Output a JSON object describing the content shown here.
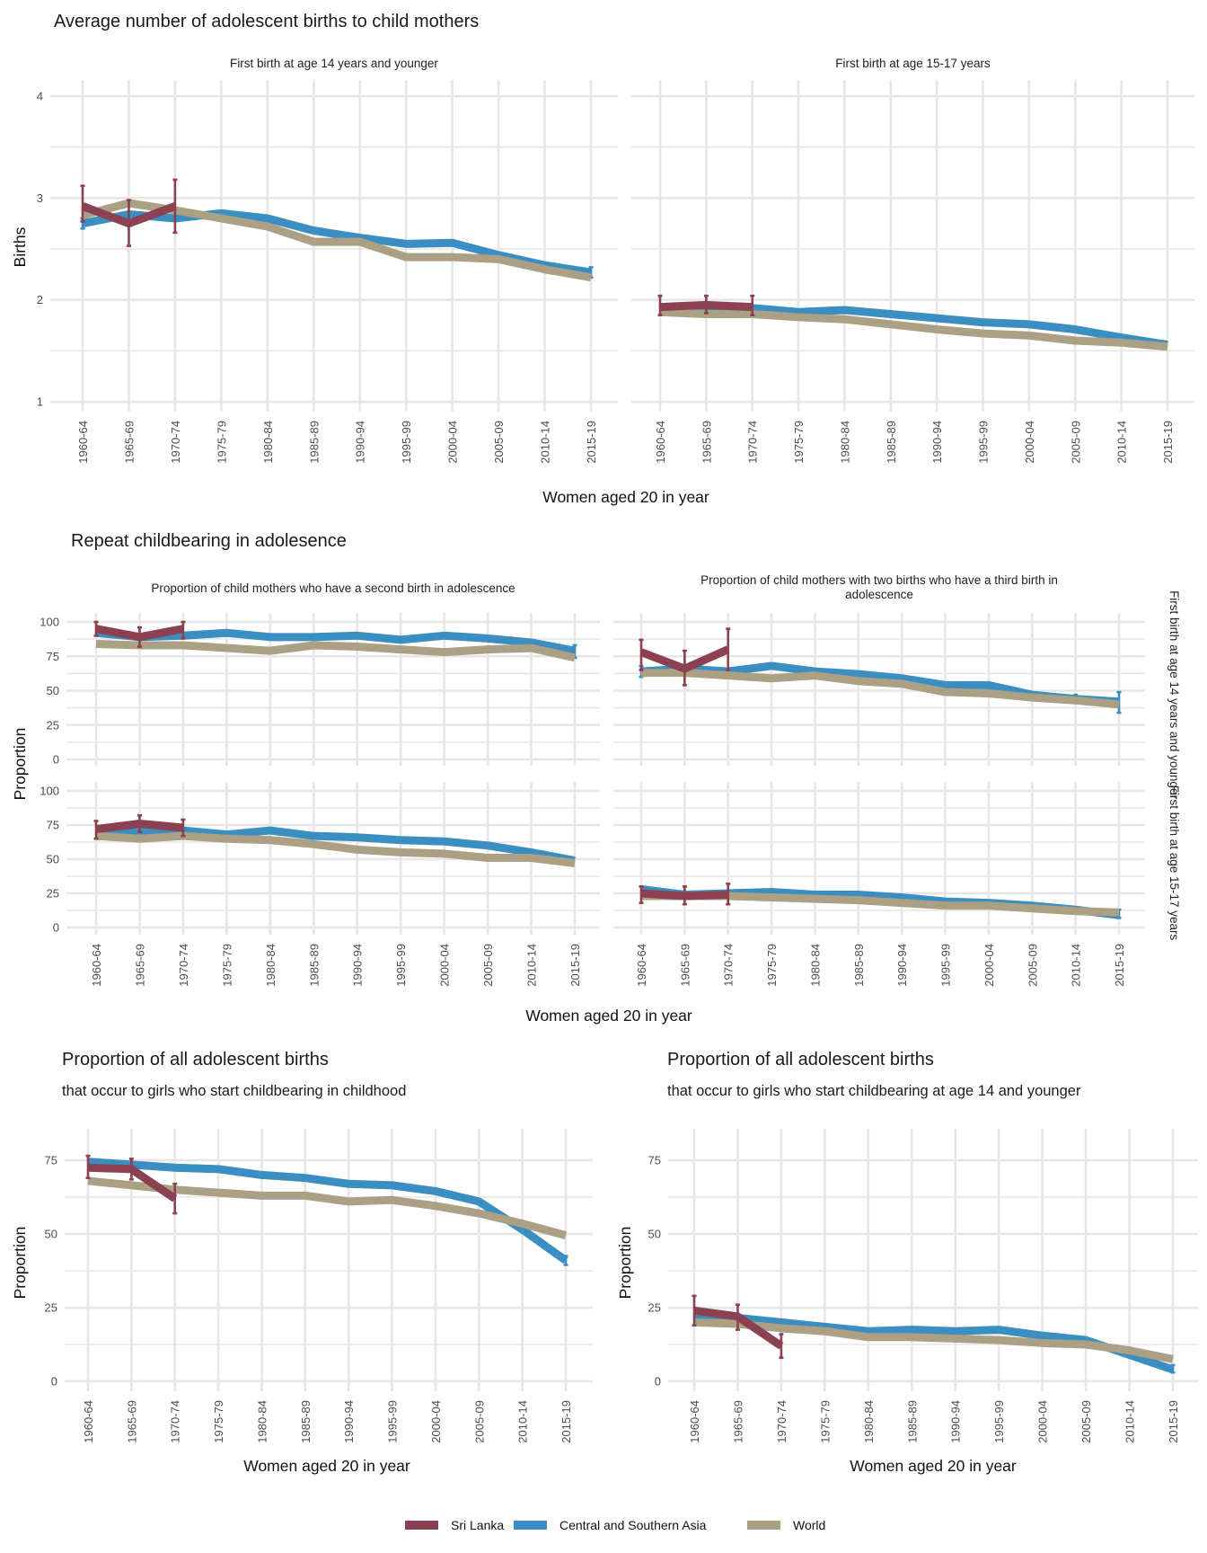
{
  "colors": {
    "sri_lanka": "#8b4151",
    "csa": "#3a8ec1",
    "world": "#ab9f84",
    "grid": "#e6e6e6"
  },
  "legend": [
    {
      "name": "Sri Lanka",
      "color": "#8b4151"
    },
    {
      "name": "Central and Southern Asia",
      "color": "#3a8ec1"
    },
    {
      "name": "World",
      "color": "#ab9f84"
    }
  ],
  "sections": {
    "s1": {
      "title": "Average number of adolescent births to child mothers",
      "xlabel": "Women aged 20 in year",
      "ylabel": "Births"
    },
    "s2": {
      "title": "Repeat childbearing in adolesence",
      "xlabel": "Women aged 20 in year",
      "ylabel": "Proportion",
      "row_strips": [
        "First birth at age 14 years and younger",
        "First birth at age 15-17 years"
      ]
    },
    "s3": {
      "title": "Proportion of all adolescent births",
      "subtitle": "that occur to girls who start childbearing in childhood",
      "xlabel": "Women aged 20 in year",
      "ylabel": "Proportion"
    },
    "s4": {
      "title": "Proportion of all adolescent births",
      "subtitle": "that occur to girls who start childbearing at age 14 and younger",
      "xlabel": "Women aged 20 in year",
      "ylabel": "Proportion"
    }
  },
  "chart_data": [
    {
      "id": "p1a",
      "type": "line",
      "panel_title": "First birth at age 14 years and younger",
      "categories": [
        "1960-64",
        "1965-69",
        "1970-74",
        "1975-79",
        "1980-84",
        "1985-89",
        "1990-94",
        "1995-99",
        "2000-04",
        "2005-09",
        "2010-14",
        "2015-19"
      ],
      "ylim": [
        1,
        4
      ],
      "yticks": [
        1,
        2,
        3,
        4
      ],
      "grid": true,
      "series": [
        {
          "name": "Central and Southern Asia",
          "values": [
            2.75,
            2.84,
            2.8,
            2.85,
            2.8,
            2.68,
            2.61,
            2.55,
            2.56,
            2.44,
            2.34,
            2.27
          ],
          "error": [
            [
              0,
              2.7,
              2.8
            ],
            [
              11,
              2.22,
              2.32
            ]
          ]
        },
        {
          "name": "World",
          "values": [
            2.83,
            2.95,
            2.88,
            2.8,
            2.72,
            2.57,
            2.57,
            2.42,
            2.42,
            2.4,
            2.3,
            2.22
          ]
        },
        {
          "name": "Sri Lanka",
          "values": [
            2.92,
            2.75,
            2.92,
            null,
            null,
            null,
            null,
            null,
            null,
            null,
            null,
            null
          ],
          "error": [
            [
              0,
              2.77,
              3.12
            ],
            [
              1,
              2.53,
              2.98
            ],
            [
              2,
              2.66,
              3.18
            ]
          ]
        }
      ]
    },
    {
      "id": "p1b",
      "type": "line",
      "panel_title": "First birth at age 15-17 years",
      "categories": [
        "1960-64",
        "1965-69",
        "1970-74",
        "1975-79",
        "1980-84",
        "1985-89",
        "1990-94",
        "1995-99",
        "2000-04",
        "2005-09",
        "2010-14",
        "2015-19"
      ],
      "ylim": [
        1,
        4
      ],
      "yticks": [
        1,
        2,
        3,
        4
      ],
      "grid": true,
      "series": [
        {
          "name": "Central and Southern Asia",
          "values": [
            1.92,
            1.92,
            1.92,
            1.88,
            1.9,
            1.86,
            1.82,
            1.78,
            1.76,
            1.71,
            1.63,
            1.56
          ]
        },
        {
          "name": "World",
          "values": [
            1.88,
            1.86,
            1.86,
            1.83,
            1.81,
            1.76,
            1.71,
            1.67,
            1.65,
            1.6,
            1.58,
            1.54
          ]
        },
        {
          "name": "Sri Lanka",
          "values": [
            1.93,
            1.95,
            1.93,
            null,
            null,
            null,
            null,
            null,
            null,
            null,
            null,
            null
          ],
          "error": [
            [
              0,
              1.85,
              2.04
            ],
            [
              1,
              1.87,
              2.04
            ],
            [
              2,
              1.85,
              2.04
            ]
          ]
        }
      ]
    },
    {
      "id": "p2a",
      "type": "line",
      "panel_title": "Proportion of child mothers who have a second birth in adolescence",
      "row_strip": "First birth at age 14 years and younger",
      "categories": [
        "1960-64",
        "1965-69",
        "1970-74",
        "1975-79",
        "1980-84",
        "1985-89",
        "1990-94",
        "1995-99",
        "2000-04",
        "2005-09",
        "2010-14",
        "2015-19"
      ],
      "ylim": [
        0,
        100
      ],
      "yticks": [
        0,
        25,
        50,
        75,
        100
      ],
      "grid": true,
      "series": [
        {
          "name": "Central and Southern Asia",
          "values": [
            92,
            89,
            90,
            92,
            89,
            89,
            90,
            87,
            90,
            88,
            85,
            79
          ],
          "error": [
            [
              11,
              74,
              83
            ]
          ]
        },
        {
          "name": "World",
          "values": [
            84,
            83,
            83,
            81,
            79,
            83,
            82,
            80,
            78,
            80,
            81,
            74
          ]
        },
        {
          "name": "Sri Lanka",
          "values": [
            95,
            89,
            95,
            null,
            null,
            null,
            null,
            null,
            null,
            null,
            null,
            null
          ],
          "error": [
            [
              0,
              90,
              100
            ],
            [
              1,
              82,
              96
            ],
            [
              2,
              88,
              100
            ]
          ]
        }
      ]
    },
    {
      "id": "p2b",
      "type": "line",
      "panel_title": "Proportion of child mothers with two births who have a third birth in adolescence",
      "row_strip": "First birth at age 14 years and younger",
      "categories": [
        "1960-64",
        "1965-69",
        "1970-74",
        "1975-79",
        "1980-84",
        "1985-89",
        "1990-94",
        "1995-99",
        "2000-04",
        "2005-09",
        "2010-14",
        "2015-19"
      ],
      "ylim": [
        0,
        100
      ],
      "yticks": [
        0,
        25,
        50,
        75,
        100
      ],
      "grid": true,
      "series": [
        {
          "name": "Central and Southern Asia",
          "values": [
            64,
            66,
            64,
            68,
            64,
            62,
            59,
            54,
            54,
            47,
            44,
            42
          ],
          "error": [
            [
              0,
              60,
              68
            ],
            [
              10,
              41,
              47
            ],
            [
              11,
              34,
              49
            ]
          ]
        },
        {
          "name": "World",
          "values": [
            63,
            63,
            61,
            59,
            61,
            57,
            55,
            49,
            48,
            45,
            43,
            40
          ]
        },
        {
          "name": "Sri Lanka",
          "values": [
            78,
            66,
            80,
            null,
            null,
            null,
            null,
            null,
            null,
            null,
            null,
            null
          ],
          "error": [
            [
              0,
              65,
              87
            ],
            [
              1,
              54,
              79
            ],
            [
              2,
              65,
              95
            ]
          ]
        }
      ]
    },
    {
      "id": "p2c",
      "type": "line",
      "panel_title": "",
      "row_strip": "First birth at age 15-17 years",
      "categories": [
        "1960-64",
        "1965-69",
        "1970-74",
        "1975-79",
        "1980-84",
        "1985-89",
        "1990-94",
        "1995-99",
        "2000-04",
        "2005-09",
        "2010-14",
        "2015-19"
      ],
      "ylim": [
        0,
        100
      ],
      "yticks": [
        0,
        25,
        50,
        75,
        100
      ],
      "grid": true,
      "series": [
        {
          "name": "Central and Southern Asia",
          "values": [
            69,
            71,
            71,
            68,
            71,
            67,
            66,
            64,
            63,
            60,
            55,
            49
          ]
        },
        {
          "name": "World",
          "values": [
            67,
            65,
            67,
            65,
            64,
            61,
            57,
            55,
            54,
            51,
            51,
            47
          ]
        },
        {
          "name": "Sri Lanka",
          "values": [
            72,
            76,
            73,
            null,
            null,
            null,
            null,
            null,
            null,
            null,
            null,
            null
          ],
          "error": [
            [
              0,
              65,
              78
            ],
            [
              1,
              70,
              82
            ],
            [
              2,
              67,
              79
            ]
          ]
        }
      ]
    },
    {
      "id": "p2d",
      "type": "line",
      "panel_title": "",
      "row_strip": "First birth at age 15-17 years",
      "categories": [
        "1960-64",
        "1965-69",
        "1970-74",
        "1975-79",
        "1980-84",
        "1985-89",
        "1990-94",
        "1995-99",
        "2000-04",
        "2005-09",
        "2010-14",
        "2015-19"
      ],
      "ylim": [
        0,
        100
      ],
      "yticks": [
        0,
        25,
        50,
        75,
        100
      ],
      "grid": true,
      "series": [
        {
          "name": "Central and Southern Asia",
          "values": [
            28,
            24,
            25,
            26,
            24,
            24,
            22,
            19,
            18,
            16,
            13,
            9
          ],
          "error": [
            [
              11,
              7,
              13
            ]
          ]
        },
        {
          "name": "World",
          "values": [
            23,
            23,
            23,
            22,
            21,
            20,
            18,
            16,
            16,
            14,
            12,
            11
          ]
        },
        {
          "name": "Sri Lanka",
          "values": [
            25,
            23,
            24,
            null,
            null,
            null,
            null,
            null,
            null,
            null,
            null,
            null
          ],
          "error": [
            [
              0,
              18,
              30
            ],
            [
              1,
              17,
              30
            ],
            [
              2,
              17,
              32
            ]
          ]
        }
      ]
    },
    {
      "id": "p3",
      "type": "line",
      "categories": [
        "1960-64",
        "1965-69",
        "1970-74",
        "1975-79",
        "1980-84",
        "1985-89",
        "1990-94",
        "1995-99",
        "2000-04",
        "2005-09",
        "2010-14",
        "2015-19"
      ],
      "ylim": [
        0,
        90
      ],
      "yticks": [
        0,
        25,
        50,
        75
      ],
      "grid": true,
      "series": [
        {
          "name": "Central and Southern Asia",
          "values": [
            74.5,
            73.5,
            72.5,
            72,
            70,
            69,
            67,
            66.5,
            64.5,
            61,
            51.5,
            41
          ],
          "error": [
            [
              11,
              39.5,
              42.5
            ]
          ]
        },
        {
          "name": "World",
          "values": [
            68,
            66.5,
            65,
            64,
            63,
            63,
            61,
            61.5,
            59.5,
            57,
            53.5,
            49.5
          ]
        },
        {
          "name": "Sri Lanka",
          "values": [
            72.5,
            72,
            62,
            null,
            null,
            null,
            null,
            null,
            null,
            null,
            null,
            null
          ],
          "error": [
            [
              0,
              69,
              76.5
            ],
            [
              1,
              68.5,
              75.5
            ],
            [
              2,
              57,
              67
            ]
          ]
        }
      ]
    },
    {
      "id": "p4",
      "type": "line",
      "categories": [
        "1960-64",
        "1965-69",
        "1970-74",
        "1975-79",
        "1980-84",
        "1985-89",
        "1990-94",
        "1995-99",
        "2000-04",
        "2005-09",
        "2010-14",
        "2015-19"
      ],
      "ylim": [
        0,
        90
      ],
      "yticks": [
        0,
        25,
        50,
        75
      ],
      "grid": true,
      "series": [
        {
          "name": "Central and Southern Asia",
          "values": [
            22,
            21.5,
            20,
            18.5,
            17,
            17.5,
            17,
            17.5,
            15.5,
            14,
            9,
            4
          ],
          "error": [
            [
              11,
              3,
              5.5
            ]
          ]
        },
        {
          "name": "World",
          "values": [
            20,
            19.5,
            18,
            17,
            15,
            15,
            14.5,
            14,
            13,
            12.5,
            10.5,
            7.5
          ]
        },
        {
          "name": "Sri Lanka",
          "values": [
            24,
            22,
            12,
            null,
            null,
            null,
            null,
            null,
            null,
            null,
            null,
            null
          ],
          "error": [
            [
              0,
              19,
              29
            ],
            [
              1,
              17.5,
              26
            ],
            [
              2,
              8,
              16
            ]
          ]
        }
      ]
    }
  ]
}
